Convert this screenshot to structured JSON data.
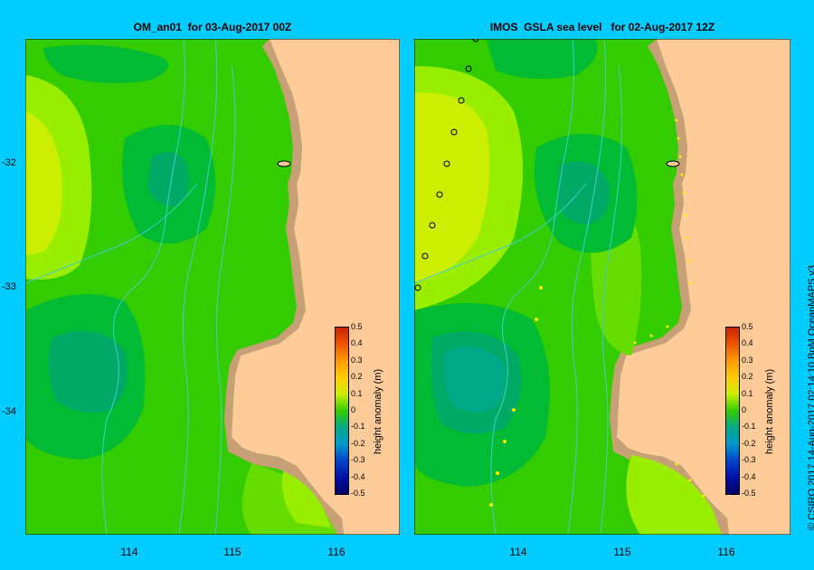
{
  "panels": [
    {
      "title": "OM_an01  for 03-Aug-2017 00Z"
    },
    {
      "title": "IMOS  GSLA sea level   for 02-Aug-2017 12Z"
    }
  ],
  "lat_labels": [
    "-32",
    "-33",
    "-34"
  ],
  "lon_labels": [
    "114",
    "115",
    "116"
  ],
  "colorbar": {
    "title": "height anomaly  (m)",
    "ticks": [
      "0.5",
      "0.4",
      "0.3",
      "0.2",
      "0.1",
      "0",
      "-0.1",
      "-0.2",
      "-0.3",
      "-0.4",
      "-0.5"
    ]
  },
  "credit": "© CSIRO 2017   14-Aug-2017 02:14:10 BoM OceanMAPS v3",
  "colors": {
    "background": "#00ccff",
    "land": "#ffcc99",
    "shelf": "#c8a078",
    "anom_0": "#33cc00",
    "anom_pos_005": "#66dd00",
    "anom_pos_01": "#99ee00",
    "anom_pos_015": "#ccee00",
    "anom_neg_005": "#00bb33",
    "anom_neg_01": "#00aa66",
    "anom_neg_015": "#00aa88",
    "contour": "#44cccc"
  }
}
